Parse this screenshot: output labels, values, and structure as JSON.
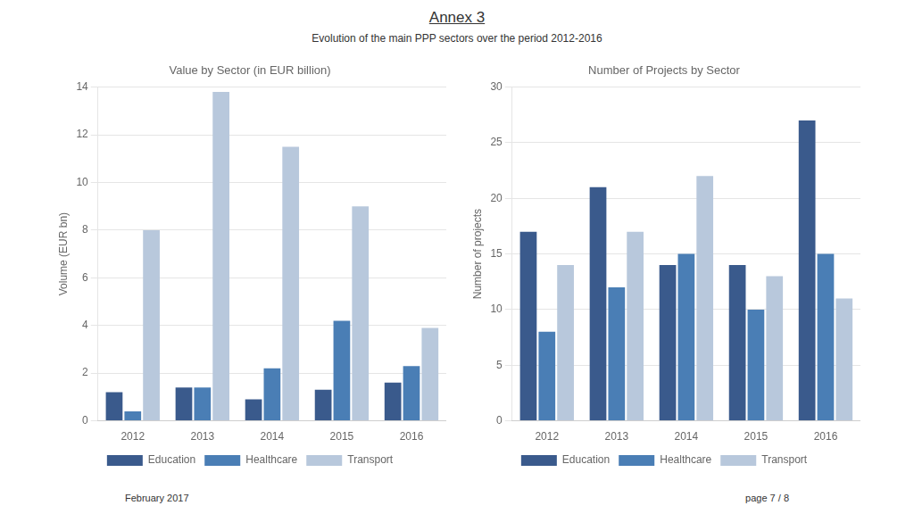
{
  "title": "Annex 3",
  "subtitle": "Evolution of the main PPP sectors over the period 2012-2016",
  "annotations": [
    "February 2017",
    "page 7 / 8"
  ],
  "chart_data": [
    {
      "type": "bar",
      "title": "Value by Sector (in EUR billion)",
      "ylabel": "Volume (EUR bn)",
      "categories": [
        "2012",
        "2013",
        "2014",
        "2015",
        "2016"
      ],
      "series": [
        {
          "name": "Education",
          "color": "#3A5A8C",
          "values": [
            1.2,
            1.4,
            0.9,
            1.3,
            1.6
          ]
        },
        {
          "name": "Healthcare",
          "color": "#4A7EB5",
          "values": [
            0.4,
            1.4,
            2.2,
            4.2,
            2.3
          ]
        },
        {
          "name": "Transport",
          "color": "#B8C8DC",
          "values": [
            8.0,
            13.8,
            11.5,
            9.0,
            3.9
          ]
        }
      ],
      "ylim": [
        0,
        14
      ],
      "yticks": [
        0,
        2,
        4,
        6,
        8,
        10,
        12,
        14
      ],
      "grid": true,
      "legend": "bottom"
    },
    {
      "type": "bar",
      "title": "Number of Projects by Sector",
      "ylabel": "Number of projects",
      "categories": [
        "2012",
        "2013",
        "2014",
        "2015",
        "2016"
      ],
      "series": [
        {
          "name": "Education",
          "color": "#3A5A8C",
          "values": [
            17,
            21,
            14,
            14,
            27
          ]
        },
        {
          "name": "Healthcare",
          "color": "#4A7EB5",
          "values": [
            8,
            12,
            15,
            10,
            15
          ]
        },
        {
          "name": "Transport",
          "color": "#B8C8DC",
          "values": [
            14,
            17,
            22,
            13,
            11
          ]
        }
      ],
      "ylim": [
        0,
        30
      ],
      "yticks": [
        0,
        5,
        10,
        15,
        20,
        25,
        30
      ],
      "grid": true,
      "legend": "bottom"
    }
  ]
}
